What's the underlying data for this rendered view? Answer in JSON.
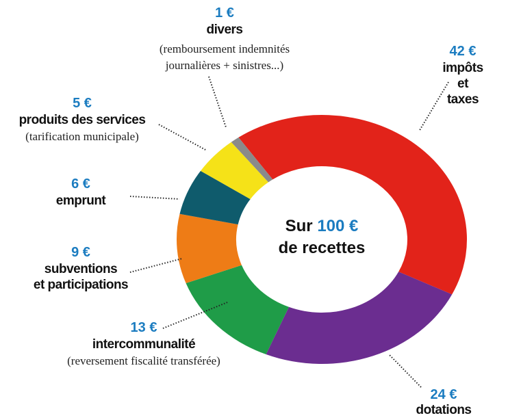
{
  "chart_data": {
    "type": "donut",
    "center_label": [
      "Sur",
      "100 €",
      "de recettes"
    ],
    "categories": [
      "impôts et taxes",
      "dotations de l'Etat",
      "intercommunalité",
      "subventions\net participations",
      "emprunt",
      "produits des services",
      "divers"
    ],
    "notes": [
      null,
      null,
      "(reversement fiscalité transférée)",
      null,
      null,
      "(tarification municipale)",
      "(remboursement indemnités\njournalières + sinistres...)"
    ],
    "values": [
      42,
      24,
      13,
      9,
      6,
      5,
      1
    ],
    "value_labels": [
      "42 €",
      "24 €",
      "13 €",
      "9 €",
      "6 €",
      "5 €",
      "1 €"
    ],
    "colors": [
      "#e2231a",
      "#6b2d90",
      "#1f9c48",
      "#ee7c16",
      "#0f5b6c",
      "#f5e218",
      "#8a8a8a"
    ]
  }
}
